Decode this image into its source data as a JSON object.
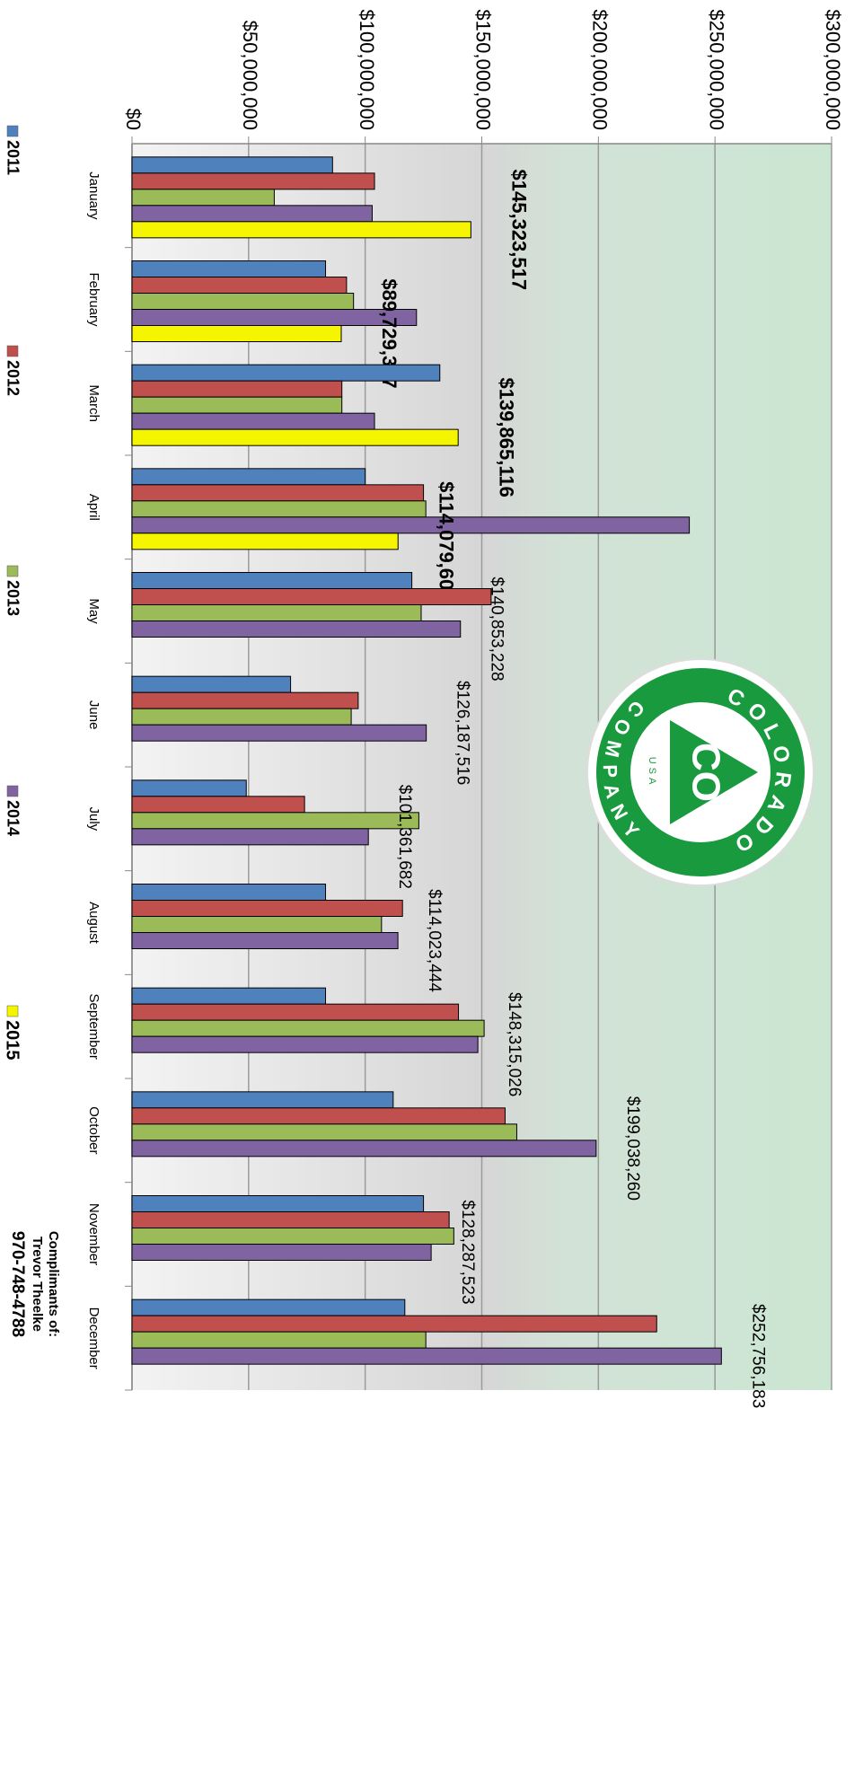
{
  "chart_data": {
    "type": "bar",
    "categories": [
      "January",
      "February",
      "March",
      "April",
      "May",
      "June",
      "July",
      "August",
      "September",
      "October",
      "November",
      "December"
    ],
    "series": [
      {
        "name": "2011",
        "color": "#4f81bd",
        "values": [
          86000000,
          83000000,
          132000000,
          100000000,
          120000000,
          68000000,
          49000000,
          83000000,
          83000000,
          112000000,
          125000000,
          117000000
        ]
      },
      {
        "name": "2012",
        "color": "#c0504d",
        "values": [
          104000000,
          92000000,
          90000000,
          125000000,
          154000000,
          97000000,
          74000000,
          116000000,
          140000000,
          160000000,
          136000000,
          225000000
        ]
      },
      {
        "name": "2013",
        "color": "#9bbb59",
        "values": [
          61000000,
          95000000,
          90000000,
          126000000,
          124000000,
          94000000,
          123000000,
          107000000,
          151000000,
          165000000,
          138000000,
          126000000
        ]
      },
      {
        "name": "2014",
        "color": "#8064a2",
        "values": [
          103000000,
          122000000,
          104000000,
          239000000,
          140853228,
          126187516,
          101361682,
          114023444,
          148315026,
          199038260,
          128287523,
          252756183
        ],
        "value_labels": [
          null,
          null,
          null,
          null,
          "$140,853,228",
          "$126,187,516",
          "$101,361,682",
          "$114,023,444",
          "$148,315,026",
          "$199,038,260",
          "$128,287,523",
          "$252,756,183"
        ]
      },
      {
        "name": "2015",
        "color": "#f5f500",
        "values": [
          145323517,
          89729327,
          139865116,
          114079607,
          null,
          null,
          null,
          null,
          null,
          null,
          null,
          null
        ],
        "value_labels": [
          "$145,323,517",
          "$89,729,327",
          "$139,865,116",
          "$114,079,607",
          null,
          null,
          null,
          null,
          null,
          null,
          null,
          null
        ]
      }
    ],
    "ylim": [
      0,
      300000000
    ],
    "yticks": [
      {
        "value": 0,
        "label": "$0"
      },
      {
        "value": 50000000,
        "label": "$50,000,000"
      },
      {
        "value": 100000000,
        "label": "$100,000,000"
      },
      {
        "value": 150000000,
        "label": "$150,000,000"
      },
      {
        "value": 200000000,
        "label": "$200,000,000"
      },
      {
        "value": 250000000,
        "label": "$250,000,000"
      },
      {
        "value": 300000000,
        "label": "$300,000,000"
      }
    ],
    "grid": true,
    "legend": "bottom"
  },
  "logo": {
    "top": "COLORADO",
    "bottom": "COMPANY",
    "center": "CO",
    "country": "USA"
  },
  "credit": [
    "Complimants of:",
    "Trevor Theelke",
    "970-748-4788"
  ]
}
